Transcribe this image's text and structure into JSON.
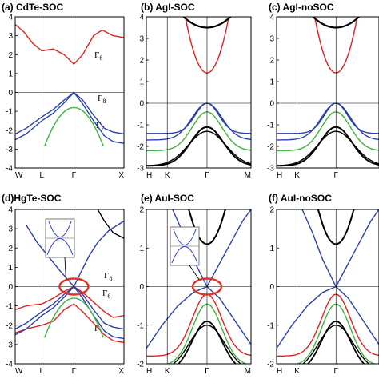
{
  "panels": [
    {
      "id": "a",
      "title": "(a) CdTe-SOC",
      "ylim": [
        -4,
        4
      ],
      "yticks": [
        "4",
        "3",
        "2",
        "1",
        "0",
        "-1",
        "-2",
        "-3",
        "-4"
      ],
      "kpoints": [
        {
          "label": "W",
          "frac": 0.0
        },
        {
          "label": "L",
          "frac": 0.245
        },
        {
          "label": "Γ",
          "frac": 0.54
        },
        {
          "label": "X",
          "frac": 1.0
        }
      ],
      "annotations": [
        {
          "main": "Γ",
          "sub": "6"
        },
        {
          "main": "Γ",
          "sub": "8"
        },
        {
          "main": "Γ",
          "sub": "7"
        }
      ]
    },
    {
      "id": "b",
      "title": "(b) AgI-SOC",
      "ylim": [
        -3,
        4
      ],
      "yticks": [
        "4",
        "3",
        "2",
        "1",
        "0",
        "-1",
        "-2",
        "-3"
      ],
      "kpoints": [
        {
          "label": "H",
          "frac": 0.0
        },
        {
          "label": "K",
          "frac": 0.2
        },
        {
          "label": "Γ",
          "frac": 0.58
        },
        {
          "label": "M",
          "frac": 1.0
        }
      ],
      "annotations": []
    },
    {
      "id": "c",
      "title": "(c) AgI-noSOC",
      "ylim": [
        -3,
        4
      ],
      "yticks": [
        "4",
        "3",
        "2",
        "1",
        "0",
        "-1",
        "-2",
        "-3"
      ],
      "kpoints": [
        {
          "label": "H",
          "frac": 0.0
        },
        {
          "label": "K",
          "frac": 0.2
        },
        {
          "label": "Γ",
          "frac": 0.58
        }
      ],
      "annotations": []
    },
    {
      "id": "d",
      "title": "(d)HgTe-SOC",
      "ylim": [
        -4,
        4
      ],
      "yticks": [
        "4",
        "3",
        "2",
        "1",
        "0",
        "-1",
        "-2",
        "-3",
        "-4"
      ],
      "kpoints": [
        {
          "label": "W",
          "frac": 0.0
        },
        {
          "label": "L",
          "frac": 0.245
        },
        {
          "label": "Γ",
          "frac": 0.54
        },
        {
          "label": "X",
          "frac": 1.0
        }
      ],
      "annotations": [
        {
          "main": "Γ",
          "sub": "8"
        },
        {
          "main": "Γ",
          "sub": "6"
        },
        {
          "main": "Γ",
          "sub": "7"
        }
      ]
    },
    {
      "id": "e",
      "title": "(e) AuI-SOC",
      "ylim": [
        -2,
        2
      ],
      "yticks": [
        "2",
        "1",
        "0",
        "-1",
        "-2"
      ],
      "kpoints": [
        {
          "label": "H",
          "frac": 0.0
        },
        {
          "label": "K",
          "frac": 0.2
        },
        {
          "label": "Γ",
          "frac": 0.58
        },
        {
          "label": "M",
          "frac": 1.0
        }
      ],
      "annotations": []
    },
    {
      "id": "f",
      "title": "(f) AuI-noSOC",
      "ylim": [
        -2,
        2
      ],
      "yticks": [
        "2",
        "1",
        "0",
        "-1",
        "-2"
      ],
      "kpoints": [
        {
          "label": "H",
          "frac": 0.0
        },
        {
          "label": "K",
          "frac": 0.2
        },
        {
          "label": "Γ",
          "frac": 0.58
        }
      ],
      "annotations": []
    }
  ],
  "colors": {
    "red": "#e02020",
    "blue": "#2a3fb0",
    "green": "#3cb43c",
    "black": "#000000",
    "highlight": "#e0301e"
  }
}
